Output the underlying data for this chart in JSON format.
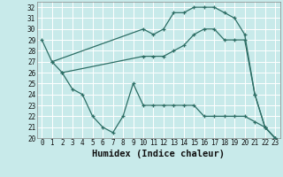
{
  "title": "",
  "xlabel": "Humidex (Indice chaleur)",
  "bg_color": "#c8eaea",
  "line_color": "#2d6e65",
  "grid_color": "#ffffff",
  "xlim": [
    -0.5,
    23.5
  ],
  "ylim": [
    20,
    32.5
  ],
  "yticks": [
    20,
    21,
    22,
    23,
    24,
    25,
    26,
    27,
    28,
    29,
    30,
    31,
    32
  ],
  "xticks": [
    0,
    1,
    2,
    3,
    4,
    5,
    6,
    7,
    8,
    9,
    10,
    11,
    12,
    13,
    14,
    15,
    16,
    17,
    18,
    19,
    20,
    21,
    22,
    23
  ],
  "line1_x": [
    0,
    1,
    10,
    11,
    12,
    13,
    14,
    15,
    16,
    17,
    18,
    19,
    20,
    21,
    22,
    23
  ],
  "line1_y": [
    29,
    27,
    30,
    29.5,
    30,
    31.5,
    31.5,
    32,
    32,
    32,
    31.5,
    31,
    29.5,
    24,
    21,
    20
  ],
  "line2_x": [
    1,
    2,
    10,
    11,
    12,
    13,
    14,
    15,
    16,
    17,
    18,
    19,
    20,
    21,
    22,
    23
  ],
  "line2_y": [
    27,
    26,
    27.5,
    27.5,
    27.5,
    28,
    28.5,
    29.5,
    30,
    30,
    29,
    29,
    29,
    24,
    21,
    20
  ],
  "line3_x": [
    2,
    3,
    4,
    5,
    6,
    7,
    8,
    9,
    10,
    11,
    12,
    13,
    14,
    15,
    16,
    17,
    18,
    19,
    20,
    21,
    22,
    23
  ],
  "line3_y": [
    26,
    24.5,
    24,
    22,
    21,
    20.5,
    22,
    25,
    23,
    23,
    23,
    23,
    23,
    23,
    22,
    22,
    22,
    22,
    22,
    21.5,
    21,
    20
  ],
  "tick_fontsize": 5.5,
  "xlabel_fontsize": 7.5
}
